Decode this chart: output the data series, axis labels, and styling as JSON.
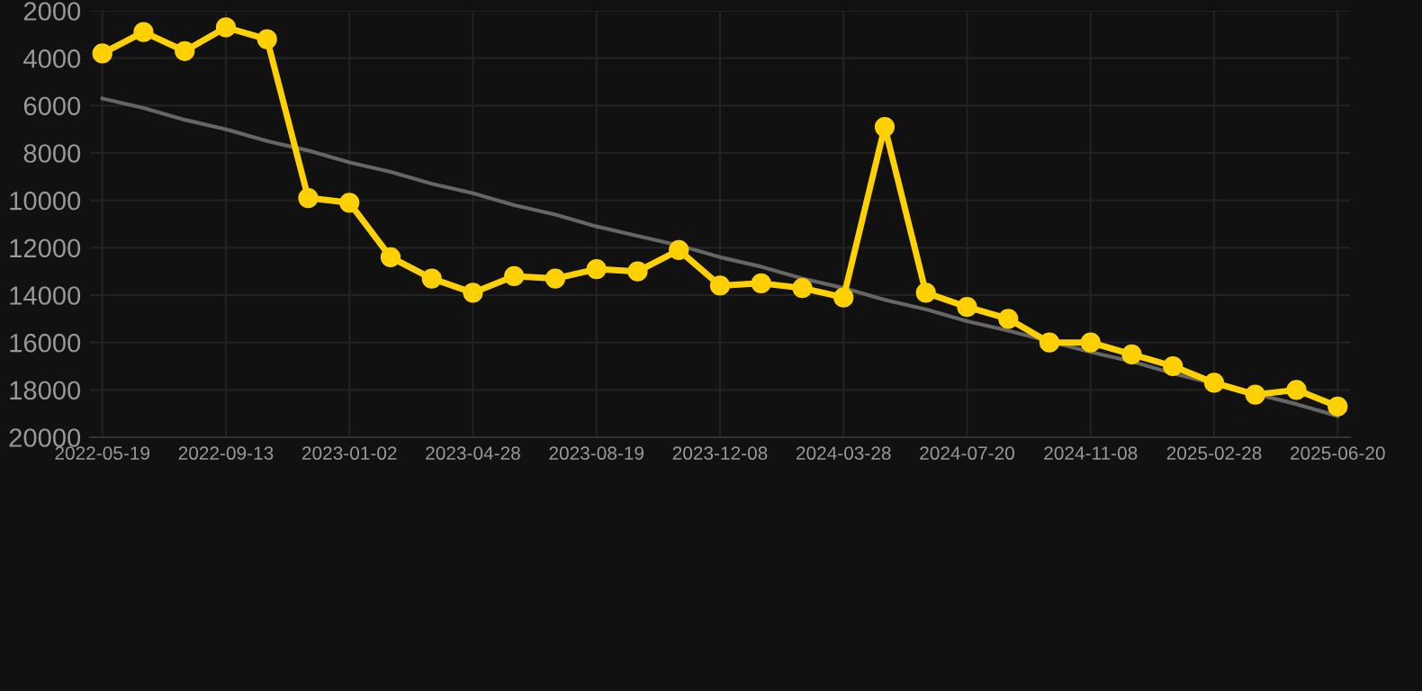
{
  "chart_data": {
    "type": "line",
    "categories": [
      "2022-05-19",
      null,
      null,
      "2022-09-13",
      null,
      null,
      "2023-01-02",
      null,
      null,
      "2023-04-28",
      null,
      null,
      "2023-08-19",
      null,
      null,
      "2023-12-08",
      null,
      null,
      "2024-03-28",
      null,
      null,
      "2024-07-20",
      null,
      null,
      "2024-11-08",
      null,
      null,
      "2025-02-28",
      null,
      null,
      "2025-06-20"
    ],
    "series": [
      {
        "color": "#ffd100",
        "marker": "circle",
        "values": [
          3800,
          2900,
          3700,
          2700,
          3200,
          9900,
          10100,
          12400,
          13300,
          13900,
          13200,
          13300,
          12900,
          13000,
          12100,
          13600,
          13500,
          13700,
          14100,
          6900,
          13900,
          14500,
          15000,
          16000,
          16000,
          16500,
          17000,
          17700,
          18200,
          18000,
          18700
        ]
      },
      {
        "color": "#666666",
        "marker": "none",
        "values": [
          5700,
          6100,
          6600,
          7000,
          7500,
          7900,
          8400,
          8800,
          9300,
          9700,
          10200,
          10600,
          11100,
          11500,
          11900,
          12400,
          12800,
          13300,
          13700,
          14200,
          14600,
          15100,
          15500,
          null,
          16400,
          16800,
          17300,
          null,
          null,
          18600,
          19100
        ]
      }
    ],
    "ylim": [
      20000,
      2000
    ],
    "yticks": [
      2000,
      4000,
      6000,
      8000,
      10000,
      12000,
      14000,
      16000,
      18000,
      20000
    ],
    "grid": true
  }
}
